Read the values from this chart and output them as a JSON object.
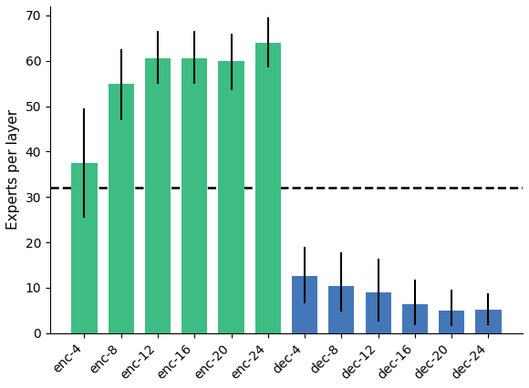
{
  "categories": [
    "enc-4",
    "enc-8",
    "enc-12",
    "enc-16",
    "enc-20",
    "enc-24",
    "dec-4",
    "dec-8",
    "dec-12",
    "dec-16",
    "dec-20",
    "dec-24"
  ],
  "values": [
    37.5,
    55.0,
    60.5,
    60.5,
    60.0,
    64.0,
    12.5,
    10.3,
    9.0,
    6.3,
    5.0,
    5.2
  ],
  "errors_upper": [
    12.0,
    7.5,
    6.0,
    6.0,
    6.0,
    5.5,
    6.5,
    7.5,
    7.5,
    5.5,
    4.5,
    3.5
  ],
  "errors_lower": [
    12.0,
    8.0,
    5.5,
    5.5,
    6.5,
    5.5,
    6.0,
    5.5,
    6.5,
    4.5,
    3.5,
    3.5
  ],
  "bar_colors": [
    "#3dbd84",
    "#3dbd84",
    "#3dbd84",
    "#3dbd84",
    "#3dbd84",
    "#3dbd84",
    "#4477b8",
    "#4477b8",
    "#4477b8",
    "#4477b8",
    "#4477b8",
    "#4477b8"
  ],
  "hline_y": 32.0,
  "ylabel": "Experts per layer",
  "ylim": [
    0,
    72
  ],
  "yticks": [
    0,
    10,
    20,
    30,
    40,
    50,
    60,
    70
  ],
  "figsize": [
    5.8,
    4.26
  ],
  "dpi": 100
}
